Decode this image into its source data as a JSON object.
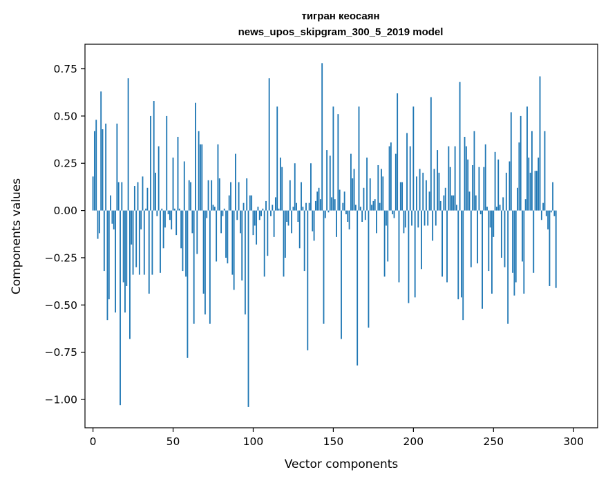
{
  "chart_data": {
    "type": "bar",
    "title": "тигран кеосаян",
    "subtitle": "news_upos_skipgram_300_5_2019 model",
    "xlabel": "Vector components",
    "ylabel": "Components values",
    "xlim": [
      -5,
      315
    ],
    "ylim": [
      -1.15,
      0.88
    ],
    "xticks": [
      0,
      50,
      100,
      150,
      200,
      250,
      300
    ],
    "xtick_labels": [
      "0",
      "50",
      "100",
      "150",
      "200",
      "250",
      "300"
    ],
    "yticks": [
      -1.0,
      -0.75,
      -0.5,
      -0.25,
      0.0,
      0.25,
      0.5,
      0.75
    ],
    "ytick_labels": [
      "−1.00",
      "−0.75",
      "−0.50",
      "−0.25",
      "0.00",
      "0.25",
      "0.50",
      "0.75"
    ],
    "grid": false,
    "color": "#1f77b4",
    "values": [
      0.18,
      0.42,
      0.48,
      -0.15,
      -0.12,
      0.63,
      0.43,
      -0.32,
      0.46,
      -0.58,
      -0.47,
      0.08,
      -0.07,
      -0.1,
      -0.54,
      0.46,
      0.15,
      -1.03,
      0.15,
      -0.38,
      -0.54,
      -0.4,
      0.7,
      -0.68,
      -0.18,
      -0.34,
      0.13,
      -0.3,
      0.15,
      -0.34,
      -0.1,
      0.18,
      -0.34,
      0.01,
      0.12,
      -0.44,
      0.5,
      -0.34,
      0.58,
      0.2,
      -0.03,
      0.34,
      -0.33,
      0.01,
      -0.2,
      -0.09,
      0.5,
      -0.02,
      -0.05,
      -0.1,
      0.28,
      0.01,
      -0.13,
      0.39,
      0.01,
      -0.2,
      -0.32,
      0.26,
      -0.35,
      -0.78,
      0.16,
      0.15,
      -0.12,
      -0.6,
      0.57,
      -0.23,
      0.42,
      0.35,
      0.35,
      -0.44,
      -0.55,
      -0.04,
      0.16,
      -0.6,
      0.16,
      0.03,
      0.02,
      -0.27,
      0.35,
      0.17,
      -0.12,
      -0.03,
      0.01,
      -0.25,
      -0.28,
      0.08,
      0.15,
      -0.34,
      -0.42,
      0.3,
      -0.05,
      0.15,
      -0.12,
      -0.37,
      0.04,
      -0.55,
      0.17,
      -1.04,
      0.08,
      0.08,
      -0.13,
      -0.08,
      -0.18,
      0.02,
      -0.05,
      -0.03,
      0.01,
      -0.35,
      0.05,
      -0.24,
      0.7,
      -0.03,
      0.03,
      -0.14,
      0.07,
      0.55,
      0.01,
      0.28,
      0.23,
      -0.35,
      -0.25,
      -0.06,
      -0.08,
      0.16,
      -0.12,
      0.02,
      0.25,
      0.04,
      -0.06,
      -0.2,
      0.15,
      0.02,
      -0.32,
      0.04,
      -0.74,
      0.04,
      0.25,
      -0.11,
      -0.16,
      0.05,
      0.1,
      0.12,
      0.06,
      0.78,
      -0.6,
      -0.04,
      0.32,
      -0.01,
      0.29,
      0.07,
      0.55,
      0.06,
      -0.14,
      0.51,
      0.11,
      -0.68,
      0.04,
      0.1,
      -0.02,
      -0.06,
      -0.1,
      0.3,
      0.17,
      0.22,
      0.03,
      -0.82,
      0.55,
      0.02,
      -0.06,
      0.12,
      -0.05,
      0.28,
      -0.62,
      0.17,
      0.03,
      0.05,
      0.06,
      -0.12,
      0.24,
      0.04,
      0.22,
      0.18,
      -0.35,
      -0.08,
      -0.27,
      0.34,
      0.36,
      -0.02,
      -0.04,
      0.3,
      0.62,
      -0.38,
      0.15,
      0.15,
      -0.12,
      -0.09,
      0.41,
      -0.49,
      0.34,
      -0.08,
      0.55,
      -0.46,
      0.18,
      -0.09,
      0.22,
      -0.31,
      0.2,
      -0.08,
      0.16,
      -0.08,
      0.1,
      0.6,
      -0.16,
      0.22,
      -0.08,
      0.32,
      0.2,
      0.05,
      -0.35,
      0.08,
      0.12,
      -0.38,
      0.34,
      0.23,
      0.08,
      0.08,
      0.34,
      0.03,
      -0.47,
      0.68,
      -0.46,
      -0.58,
      0.39,
      0.34,
      0.27,
      0.1,
      -0.3,
      0.24,
      0.42,
      0.08,
      -0.28,
      0.23,
      -0.02,
      -0.52,
      0.23,
      0.35,
      0.02,
      -0.32,
      -0.09,
      -0.44,
      -0.14,
      0.31,
      0.02,
      0.27,
      0.03,
      -0.25,
      0.07,
      -0.3,
      0.2,
      -0.6,
      0.26,
      0.52,
      -0.33,
      -0.45,
      -0.38,
      0.12,
      0.36,
      0.5,
      -0.27,
      -0.44,
      0.06,
      0.55,
      0.28,
      0.2,
      0.42,
      -0.33,
      0.21,
      0.21,
      0.28,
      0.71,
      -0.05,
      0.04,
      0.42,
      -0.03,
      -0.1,
      -0.4,
      -0.01,
      0.15,
      -0.03,
      -0.41
    ]
  }
}
